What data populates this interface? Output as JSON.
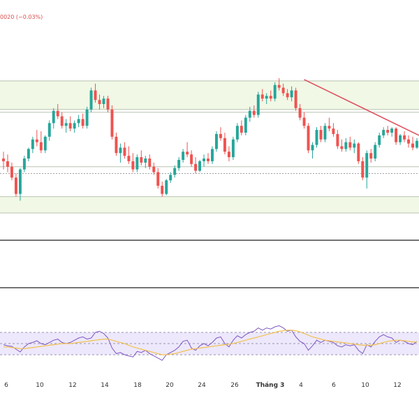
{
  "header": {
    "change_text": "0020 (−0.03%)"
  },
  "colors": {
    "up": "#26a69a",
    "down": "#ef5350",
    "trendline": "#e04c5a",
    "zone_fill": "#f1f8e6",
    "zone_line": "#b8c4b0",
    "rsi_line": "#7e57c2",
    "rsi_ma": "#f2c14e",
    "rsi_band": "#ede8fb"
  },
  "chart_data": [
    {
      "type": "candlestick",
      "title": "",
      "xlabel": "",
      "ylabel": "",
      "x_tick_labels": [
        "6",
        "10",
        "12",
        "14",
        "18",
        "20",
        "24",
        "26",
        "Tháng 3",
        "4",
        "6",
        "10",
        "12"
      ],
      "ylim": [
        0,
        100
      ],
      "zones": [
        [
          76,
          97
        ],
        [
          0,
          12
        ]
      ],
      "reference_levels": [
        74,
        34,
        29,
        0
      ],
      "trendline": {
        "from": [
          124,
          98
        ],
        "to": [
          200,
          57
        ]
      },
      "candles": [
        [
          40,
          45,
          32,
          38
        ],
        [
          38,
          43,
          30,
          34
        ],
        [
          34,
          37,
          24,
          26
        ],
        [
          26,
          29,
          12,
          14
        ],
        [
          14,
          33,
          9,
          32
        ],
        [
          32,
          42,
          30,
          40
        ],
        [
          40,
          48,
          38,
          47
        ],
        [
          47,
          56,
          44,
          54
        ],
        [
          54,
          61,
          49,
          52
        ],
        [
          52,
          60,
          44,
          46
        ],
        [
          46,
          57,
          44,
          56
        ],
        [
          56,
          68,
          53,
          66
        ],
        [
          66,
          77,
          62,
          75
        ],
        [
          75,
          80,
          69,
          71
        ],
        [
          71,
          74,
          62,
          64
        ],
        [
          64,
          69,
          59,
          66
        ],
        [
          66,
          71,
          60,
          62
        ],
        [
          62,
          68,
          59,
          66
        ],
        [
          66,
          72,
          63,
          69
        ],
        [
          69,
          73,
          62,
          64
        ],
        [
          64,
          78,
          62,
          76
        ],
        [
          76,
          92,
          74,
          90
        ],
        [
          90,
          95,
          81,
          83
        ],
        [
          83,
          87,
          76,
          80
        ],
        [
          80,
          86,
          77,
          84
        ],
        [
          84,
          86,
          74,
          76
        ],
        [
          76,
          79,
          54,
          56
        ],
        [
          56,
          59,
          42,
          44
        ],
        [
          44,
          51,
          37,
          48
        ],
        [
          48,
          52,
          40,
          42
        ],
        [
          42,
          49,
          36,
          38
        ],
        [
          38,
          44,
          30,
          32
        ],
        [
          32,
          43,
          30,
          41
        ],
        [
          41,
          46,
          35,
          37
        ],
        [
          37,
          42,
          33,
          40
        ],
        [
          40,
          43,
          32,
          34
        ],
        [
          34,
          37,
          28,
          30
        ],
        [
          30,
          33,
          18,
          20
        ],
        [
          20,
          23,
          12,
          14
        ],
        [
          14,
          25,
          13,
          24
        ],
        [
          24,
          30,
          22,
          28
        ],
        [
          28,
          35,
          26,
          33
        ],
        [
          33,
          41,
          31,
          39
        ],
        [
          39,
          47,
          37,
          45
        ],
        [
          45,
          52,
          41,
          43
        ],
        [
          43,
          46,
          34,
          36
        ],
        [
          36,
          41,
          29,
          31
        ],
        [
          31,
          39,
          30,
          38
        ],
        [
          38,
          43,
          34,
          40
        ],
        [
          40,
          44,
          36,
          38
        ],
        [
          38,
          49,
          36,
          47
        ],
        [
          47,
          60,
          45,
          58
        ],
        [
          58,
          63,
          53,
          55
        ],
        [
          55,
          59,
          43,
          45
        ],
        [
          45,
          49,
          38,
          41
        ],
        [
          41,
          56,
          39,
          54
        ],
        [
          54,
          66,
          52,
          64
        ],
        [
          64,
          68,
          57,
          59
        ],
        [
          59,
          72,
          57,
          70
        ],
        [
          70,
          78,
          67,
          75
        ],
        [
          75,
          79,
          70,
          72
        ],
        [
          72,
          89,
          70,
          87
        ],
        [
          87,
          91,
          82,
          84
        ],
        [
          84,
          88,
          80,
          86
        ],
        [
          86,
          90,
          82,
          84
        ],
        [
          84,
          96,
          82,
          94
        ],
        [
          94,
          99,
          90,
          92
        ],
        [
          92,
          95,
          86,
          88
        ],
        [
          88,
          91,
          83,
          85
        ],
        [
          85,
          93,
          82,
          90
        ],
        [
          90,
          92,
          75,
          77
        ],
        [
          77,
          80,
          68,
          70
        ],
        [
          70,
          74,
          62,
          64
        ],
        [
          64,
          66,
          44,
          46
        ],
        [
          46,
          52,
          40,
          50
        ],
        [
          50,
          63,
          48,
          61
        ],
        [
          61,
          64,
          52,
          54
        ],
        [
          54,
          66,
          52,
          64
        ],
        [
          64,
          70,
          60,
          62
        ],
        [
          62,
          66,
          56,
          58
        ],
        [
          58,
          61,
          47,
          49
        ],
        [
          49,
          54,
          45,
          47
        ],
        [
          47,
          55,
          45,
          52
        ],
        [
          52,
          56,
          46,
          48
        ],
        [
          48,
          54,
          44,
          51
        ],
        [
          51,
          52,
          36,
          38
        ],
        [
          38,
          41,
          24,
          26
        ],
        [
          26,
          46,
          18,
          44
        ],
        [
          44,
          47,
          37,
          40
        ],
        [
          40,
          52,
          38,
          50
        ],
        [
          50,
          59,
          48,
          57
        ],
        [
          57,
          63,
          55,
          61
        ],
        [
          61,
          64,
          57,
          59
        ],
        [
          59,
          63,
          56,
          62
        ],
        [
          62,
          63,
          50,
          52
        ],
        [
          52,
          58,
          50,
          57
        ],
        [
          57,
          60,
          52,
          54
        ],
        [
          54,
          57,
          48,
          51
        ],
        [
          51,
          56,
          46,
          48
        ],
        [
          48,
          55,
          47,
          53
        ]
      ]
    },
    {
      "type": "line",
      "title": "",
      "xlabel": "",
      "ylabel": "",
      "ylim": [
        0,
        100
      ],
      "bands": {
        "upper": 70,
        "middle": 50,
        "lower": 30
      },
      "series": [
        {
          "values": [
            48,
            46,
            45,
            40,
            35,
            44,
            50,
            52,
            55,
            50,
            48,
            52,
            56,
            58,
            52,
            50,
            52,
            56,
            60,
            62,
            58,
            60,
            70,
            72,
            68,
            60,
            42,
            32,
            34,
            30,
            28,
            26,
            36,
            34,
            38,
            32,
            28,
            24,
            20,
            30,
            34,
            38,
            44,
            54,
            56,
            42,
            38,
            46,
            50,
            46,
            52,
            60,
            62,
            50,
            44,
            56,
            64,
            60,
            66,
            70,
            72,
            78,
            74,
            78,
            76,
            80,
            82,
            78,
            72,
            74,
            62,
            54,
            50,
            38,
            46,
            56,
            52,
            56,
            54,
            52,
            46,
            44,
            48,
            46,
            48,
            38,
            32,
            48,
            44,
            54,
            62,
            66,
            62,
            60,
            52,
            56,
            54,
            50,
            48,
            54
          ]
        },
        {
          "values": [
            44,
            44,
            43,
            42,
            41,
            41,
            42,
            43,
            44,
            45,
            46,
            47,
            48,
            49,
            50,
            50,
            50,
            51,
            52,
            53,
            54,
            55,
            56,
            57,
            58,
            58,
            56,
            54,
            52,
            50,
            47,
            44,
            42,
            40,
            38,
            36,
            34,
            32,
            30,
            30,
            31,
            32,
            34,
            36,
            38,
            40,
            41,
            42,
            43,
            44,
            45,
            46,
            47,
            48,
            49,
            50,
            52,
            54,
            56,
            58,
            60,
            62,
            64,
            66,
            68,
            70,
            72,
            73,
            74,
            74,
            73,
            71,
            68,
            65,
            62,
            60,
            58,
            56,
            55,
            54,
            53,
            52,
            51,
            50,
            49,
            48,
            47,
            47,
            47,
            48,
            50,
            52,
            54,
            55,
            56,
            56,
            55,
            54,
            53,
            53
          ]
        }
      ]
    }
  ]
}
